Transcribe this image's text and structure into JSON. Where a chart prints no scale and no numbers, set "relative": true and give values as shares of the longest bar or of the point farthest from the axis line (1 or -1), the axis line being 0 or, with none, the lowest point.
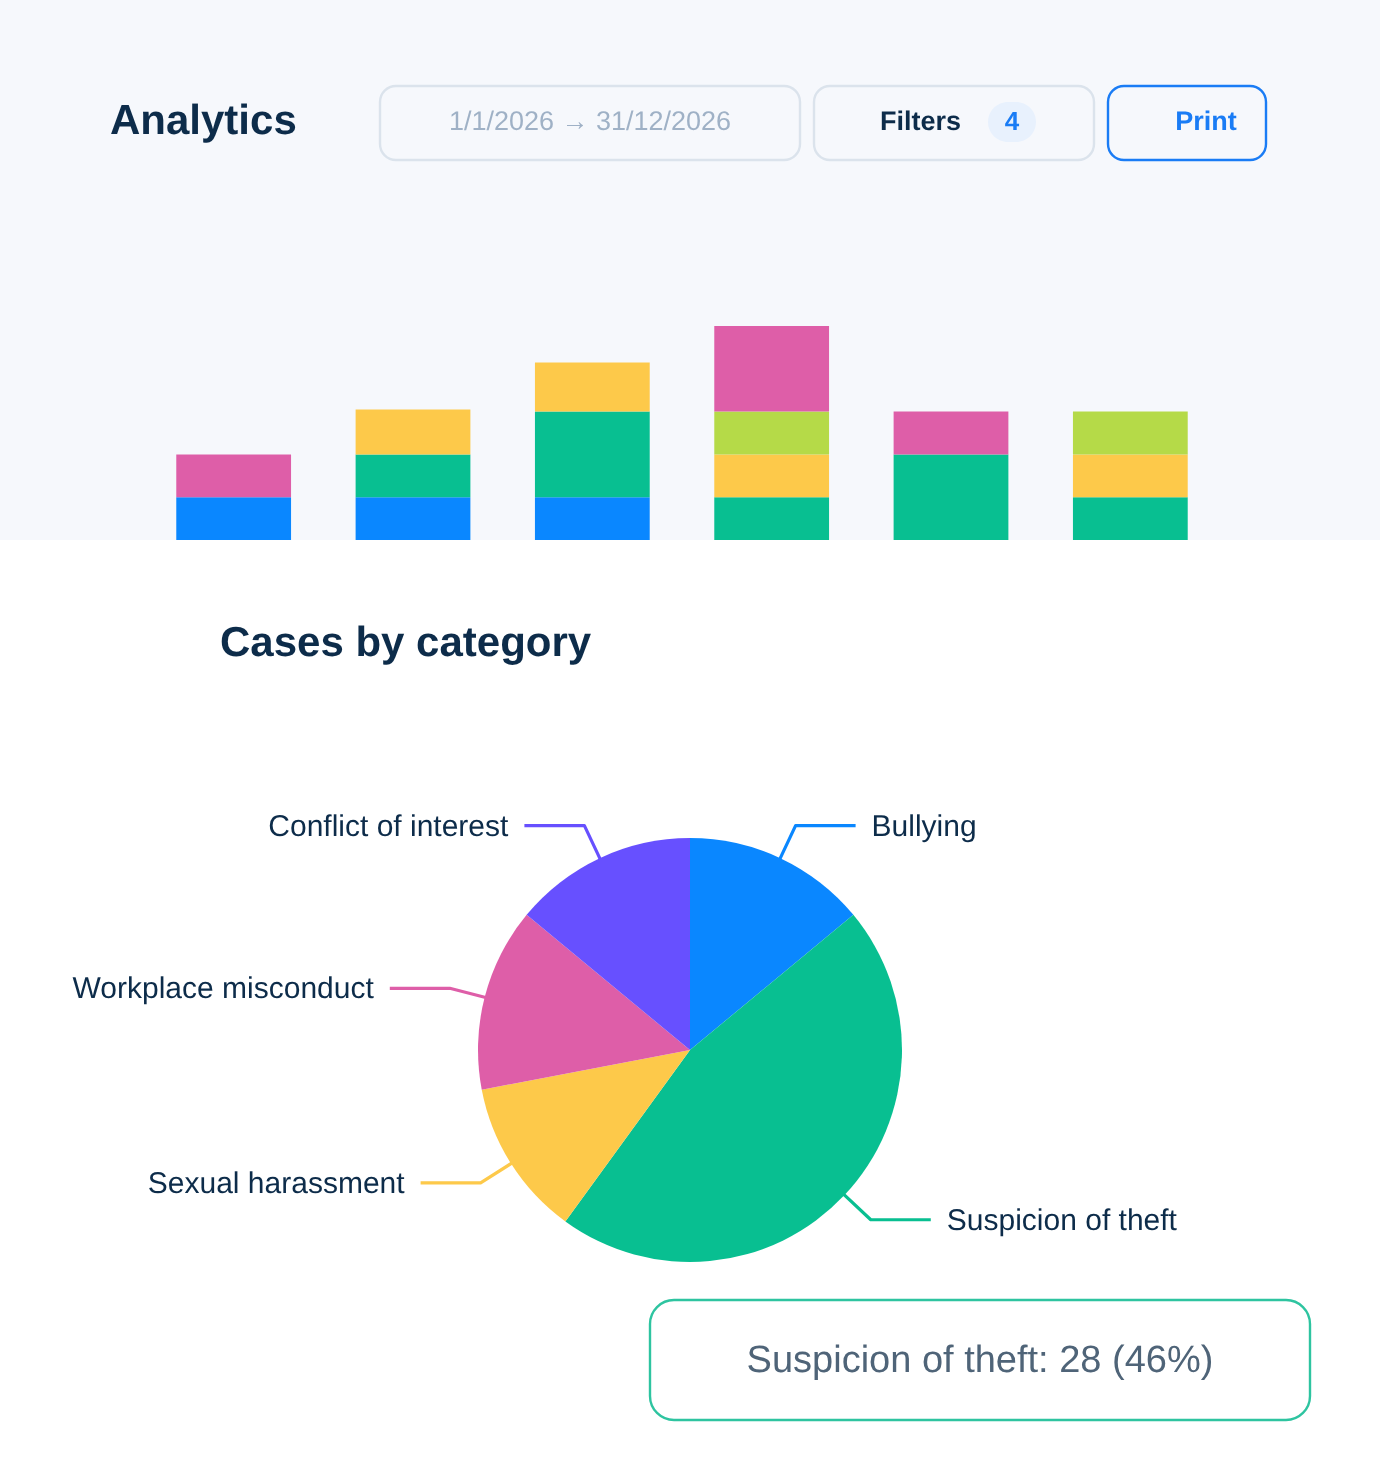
{
  "chart_data": [
    {
      "type": "bar",
      "title": "Analytics",
      "annotations": [
        "1/1/2026 → 31/12/2026",
        "Filters",
        "4",
        "Print"
      ],
      "categories": [
        null,
        null,
        null,
        null,
        null,
        null
      ],
      "stacked": true,
      "relative": true,
      "series": [
        {
          "color": "#0a87ff",
          "values": [
            0.2,
            0.2,
            0.2,
            null,
            null,
            null
          ]
        },
        {
          "color": "#08bf91",
          "values": [
            null,
            0.2,
            0.4,
            0.2,
            0.4,
            0.2
          ]
        },
        {
          "color": "#fdc94a",
          "values": [
            null,
            0.21,
            0.23,
            0.2,
            null,
            0.2
          ]
        },
        {
          "color": "#b5da48",
          "values": [
            null,
            null,
            null,
            0.2,
            null,
            0.2
          ]
        },
        {
          "color": "#de5ea8",
          "values": [
            0.2,
            null,
            null,
            0.4,
            0.2,
            null
          ]
        }
      ]
    },
    {
      "type": "pie",
      "title": "Cases by category",
      "categories": [
        "Bullying",
        "Suspicion of theft",
        "Sexual harassment",
        "Workplace misconduct",
        "Conflict of interest"
      ],
      "values": [
        14,
        46,
        12,
        14,
        14
      ],
      "colors": [
        "#0a87ff",
        "#08bf91",
        "#fdc94a",
        "#de5ea8",
        "#6750ff"
      ],
      "annotations": [
        "Suspicion of theft: 28 (46%)"
      ]
    }
  ]
}
